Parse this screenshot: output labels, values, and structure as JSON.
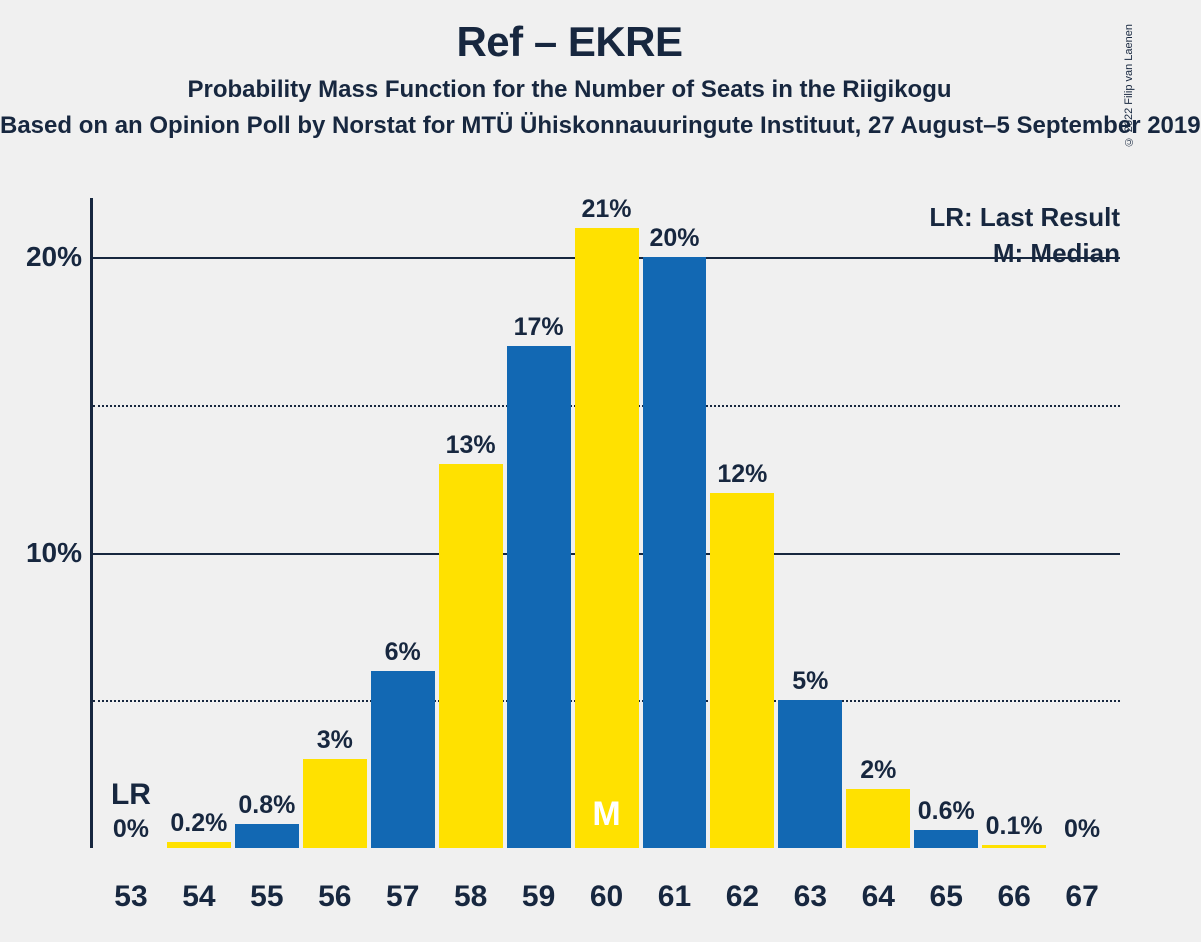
{
  "title": "Ref – EKRE",
  "subtitle": "Probability Mass Function for the Number of Seats in the Riigikogu",
  "subtitle2": "Based on an Opinion Poll by Norstat for MTÜ Ühiskonnauuringute Instituut, 27 August–5 September 2019",
  "copyright": "© 2022 Filip van Laenen",
  "legend_lr": "LR: Last Result",
  "legend_m": "M: Median",
  "lr_label": "LR",
  "median_label": "M",
  "chart": {
    "type": "bar",
    "ylim": [
      0,
      22
    ],
    "yticks": [
      {
        "value": 5,
        "label": "",
        "dotted": true
      },
      {
        "value": 10,
        "label": "10%",
        "dotted": false
      },
      {
        "value": 15,
        "label": "",
        "dotted": true
      },
      {
        "value": 20,
        "label": "20%",
        "dotted": false
      }
    ],
    "colors": {
      "blue": "#1268b3",
      "yellow": "#ffe100"
    },
    "background_color": "#f0f0f0",
    "axis_color": "#17273f",
    "bars": [
      {
        "cat": "53",
        "value": 0,
        "label": "0%",
        "color": "blue",
        "lr": true,
        "median": false
      },
      {
        "cat": "54",
        "value": 0.2,
        "label": "0.2%",
        "color": "yellow",
        "lr": false,
        "median": false
      },
      {
        "cat": "55",
        "value": 0.8,
        "label": "0.8%",
        "color": "blue",
        "lr": false,
        "median": false
      },
      {
        "cat": "56",
        "value": 3,
        "label": "3%",
        "color": "yellow",
        "lr": false,
        "median": false
      },
      {
        "cat": "57",
        "value": 6,
        "label": "6%",
        "color": "blue",
        "lr": false,
        "median": false
      },
      {
        "cat": "58",
        "value": 13,
        "label": "13%",
        "color": "yellow",
        "lr": false,
        "median": false
      },
      {
        "cat": "59",
        "value": 17,
        "label": "17%",
        "color": "blue",
        "lr": false,
        "median": false
      },
      {
        "cat": "60",
        "value": 21,
        "label": "21%",
        "color": "yellow",
        "lr": false,
        "median": true
      },
      {
        "cat": "61",
        "value": 20,
        "label": "20%",
        "color": "blue",
        "lr": false,
        "median": false
      },
      {
        "cat": "62",
        "value": 12,
        "label": "12%",
        "color": "yellow",
        "lr": false,
        "median": false
      },
      {
        "cat": "63",
        "value": 5,
        "label": "5%",
        "color": "blue",
        "lr": false,
        "median": false
      },
      {
        "cat": "64",
        "value": 2,
        "label": "2%",
        "color": "yellow",
        "lr": false,
        "median": false
      },
      {
        "cat": "65",
        "value": 0.6,
        "label": "0.6%",
        "color": "blue",
        "lr": false,
        "median": false
      },
      {
        "cat": "66",
        "value": 0.1,
        "label": "0.1%",
        "color": "yellow",
        "lr": false,
        "median": false
      },
      {
        "cat": "67",
        "value": 0,
        "label": "0%",
        "color": "blue",
        "lr": false,
        "median": false
      }
    ]
  }
}
